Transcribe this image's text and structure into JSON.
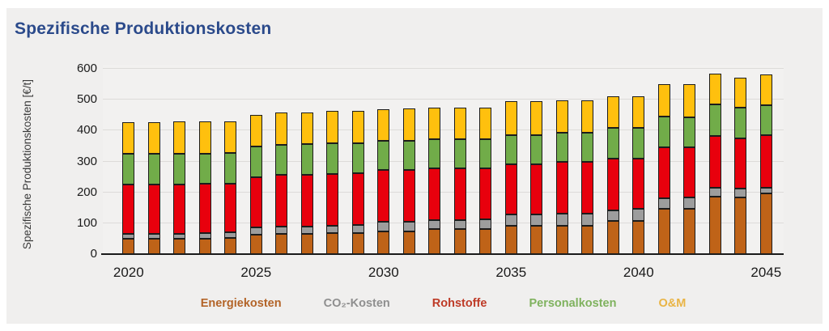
{
  "chart_data": {
    "type": "bar",
    "stacked": true,
    "title": "Spezifische Produktionskosten",
    "ylabel": "Spezifische Produktionskosten [€/t]",
    "xlabel": "",
    "ylim": [
      0,
      600
    ],
    "ytick_step": 100,
    "grid": true,
    "legend_position": "bottom",
    "categories": [
      "2020",
      "2021",
      "2022",
      "2023",
      "2024",
      "2025",
      "2026",
      "2027",
      "2028",
      "2029",
      "2030",
      "2031",
      "2032",
      "2033",
      "2034",
      "2035",
      "2036",
      "2037",
      "2038",
      "2039",
      "2040",
      "2041",
      "2042",
      "2043",
      "2044",
      "2045"
    ],
    "xticks_shown": [
      "2020",
      "2025",
      "2030",
      "2035",
      "2040",
      "2045"
    ],
    "series": [
      {
        "name": "Energiekosten",
        "color": "#bf6318",
        "legend_color": "#b36428",
        "values": [
          50,
          50,
          49,
          50,
          52,
          62,
          66,
          66,
          69,
          69,
          74,
          74,
          80,
          80,
          80,
          93,
          93,
          92,
          92,
          107,
          107,
          147,
          147,
          187,
          183,
          196
        ]
      },
      {
        "name": "CO₂-Kosten",
        "color": "#9d9d9d",
        "legend_color": "#8f8f8f",
        "values": [
          16,
          16,
          17,
          19,
          20,
          25,
          23,
          24,
          24,
          25,
          31,
          31,
          31,
          31,
          32,
          35,
          35,
          39,
          39,
          35,
          41,
          35,
          37,
          29,
          28,
          18
        ]
      },
      {
        "name": "Rohstoffe",
        "color": "#e8000d",
        "legend_color": "#be3a26",
        "values": [
          159,
          159,
          160,
          158,
          157,
          163,
          167,
          167,
          167,
          167,
          167,
          167,
          166,
          166,
          166,
          162,
          162,
          168,
          168,
          167,
          161,
          164,
          161,
          166,
          164,
          170
        ]
      },
      {
        "name": "Personalkosten",
        "color": "#71ac49",
        "legend_color": "#7fb25e",
        "values": [
          99,
          99,
          100,
          99,
          99,
          98,
          98,
          99,
          98,
          98,
          94,
          96,
          95,
          95,
          95,
          96,
          96,
          93,
          94,
          99,
          99,
          100,
          99,
          104,
          100,
          97
        ]
      },
      {
        "name": "O&M",
        "color": "#ffc00e",
        "legend_color": "#e9b445",
        "values": [
          104,
          104,
          104,
          104,
          103,
          102,
          104,
          103,
          105,
          105,
          103,
          103,
          101,
          101,
          101,
          109,
          109,
          105,
          105,
          102,
          104,
          105,
          105,
          97,
          96,
          101
        ]
      }
    ]
  }
}
